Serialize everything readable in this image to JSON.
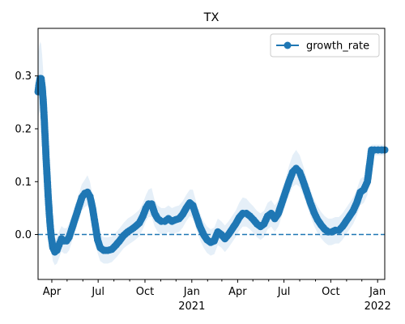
{
  "chart_data": {
    "type": "line",
    "title": "TX",
    "xlabel": "",
    "ylabel": "",
    "x_range": [
      "2020-03-05",
      "2022-01-15"
    ],
    "ylim": [
      -0.085,
      0.39
    ],
    "yticks": [
      0.0,
      0.1,
      0.2,
      0.3
    ],
    "ytick_labels": [
      "0.0",
      "0.1",
      "0.2",
      "0.3"
    ],
    "xticks_major": [
      {
        "date": "2020-04-01",
        "label": "Apr",
        "sublabel": ""
      },
      {
        "date": "2020-07-01",
        "label": "Jul",
        "sublabel": ""
      },
      {
        "date": "2020-10-01",
        "label": "Oct",
        "sublabel": ""
      },
      {
        "date": "2021-01-01",
        "label": "Jan",
        "sublabel": "2021"
      },
      {
        "date": "2021-04-01",
        "label": "Apr",
        "sublabel": ""
      },
      {
        "date": "2021-07-01",
        "label": "Jul",
        "sublabel": ""
      },
      {
        "date": "2021-10-01",
        "label": "Oct",
        "sublabel": ""
      },
      {
        "date": "2022-01-01",
        "label": "Jan",
        "sublabel": "2022"
      }
    ],
    "xticks_minor": [
      "2020-05-01",
      "2020-06-01",
      "2020-08-01",
      "2020-09-01",
      "2020-11-01",
      "2020-12-01",
      "2021-02-01",
      "2021-03-01",
      "2021-05-01",
      "2021-06-01",
      "2021-08-01",
      "2021-09-01",
      "2021-11-01",
      "2021-12-01"
    ],
    "grid": false,
    "legend_position": "top-right",
    "reference_line": {
      "y": 0.0,
      "style": "dashed",
      "color": "#1f77b4"
    },
    "series": [
      {
        "name": "growth_rate",
        "color": "#1f77b4",
        "band_color": "#cfe2f3",
        "marker": "circle",
        "points": [
          {
            "x": "2020-03-05",
            "y": 0.27,
            "lo": 0.22,
            "hi": 0.34
          },
          {
            "x": "2020-03-07",
            "y": 0.285,
            "lo": 0.23,
            "hi": 0.355
          },
          {
            "x": "2020-03-09",
            "y": 0.295,
            "lo": 0.24,
            "hi": 0.365
          },
          {
            "x": "2020-03-11",
            "y": 0.295,
            "lo": 0.24,
            "hi": 0.36
          },
          {
            "x": "2020-03-13",
            "y": 0.28,
            "lo": 0.23,
            "hi": 0.34
          },
          {
            "x": "2020-03-15",
            "y": 0.255,
            "lo": 0.205,
            "hi": 0.31
          },
          {
            "x": "2020-03-17",
            "y": 0.22,
            "lo": 0.17,
            "hi": 0.27
          },
          {
            "x": "2020-03-19",
            "y": 0.18,
            "lo": 0.13,
            "hi": 0.23
          },
          {
            "x": "2020-03-21",
            "y": 0.14,
            "lo": 0.095,
            "hi": 0.185
          },
          {
            "x": "2020-03-23",
            "y": 0.105,
            "lo": 0.065,
            "hi": 0.145
          },
          {
            "x": "2020-03-25",
            "y": 0.07,
            "lo": 0.035,
            "hi": 0.105
          },
          {
            "x": "2020-03-27",
            "y": 0.04,
            "lo": 0.01,
            "hi": 0.07
          },
          {
            "x": "2020-03-29",
            "y": 0.015,
            "lo": -0.012,
            "hi": 0.042
          },
          {
            "x": "2020-03-31",
            "y": -0.005,
            "lo": -0.03,
            "hi": 0.02
          },
          {
            "x": "2020-04-03",
            "y": -0.025,
            "lo": -0.05,
            "hi": 0.0
          },
          {
            "x": "2020-04-07",
            "y": -0.033,
            "lo": -0.058,
            "hi": -0.008
          },
          {
            "x": "2020-04-11",
            "y": -0.03,
            "lo": -0.055,
            "hi": -0.005
          },
          {
            "x": "2020-04-15",
            "y": -0.02,
            "lo": -0.045,
            "hi": 0.005
          },
          {
            "x": "2020-04-20",
            "y": -0.008,
            "lo": -0.032,
            "hi": 0.016
          },
          {
            "x": "2020-04-25",
            "y": -0.012,
            "lo": -0.036,
            "hi": 0.012
          },
          {
            "x": "2020-04-30",
            "y": -0.012,
            "lo": -0.036,
            "hi": 0.012
          },
          {
            "x": "2020-05-05",
            "y": -0.005,
            "lo": -0.03,
            "hi": 0.02
          },
          {
            "x": "2020-05-10",
            "y": 0.01,
            "lo": -0.015,
            "hi": 0.035
          },
          {
            "x": "2020-05-15",
            "y": 0.025,
            "lo": 0.0,
            "hi": 0.05
          },
          {
            "x": "2020-05-20",
            "y": 0.04,
            "lo": 0.015,
            "hi": 0.065
          },
          {
            "x": "2020-05-25",
            "y": 0.055,
            "lo": 0.03,
            "hi": 0.08
          },
          {
            "x": "2020-05-30",
            "y": 0.07,
            "lo": 0.045,
            "hi": 0.095
          },
          {
            "x": "2020-06-05",
            "y": 0.078,
            "lo": 0.052,
            "hi": 0.104
          },
          {
            "x": "2020-06-10",
            "y": 0.08,
            "lo": 0.055,
            "hi": 0.112
          },
          {
            "x": "2020-06-15",
            "y": 0.072,
            "lo": 0.046,
            "hi": 0.1
          },
          {
            "x": "2020-06-20",
            "y": 0.05,
            "lo": 0.025,
            "hi": 0.075
          },
          {
            "x": "2020-06-25",
            "y": 0.02,
            "lo": -0.005,
            "hi": 0.045
          },
          {
            "x": "2020-06-30",
            "y": -0.01,
            "lo": -0.035,
            "hi": 0.015
          },
          {
            "x": "2020-07-05",
            "y": -0.025,
            "lo": -0.05,
            "hi": 0.0
          },
          {
            "x": "2020-07-12",
            "y": -0.03,
            "lo": -0.055,
            "hi": -0.005
          },
          {
            "x": "2020-07-20",
            "y": -0.03,
            "lo": -0.055,
            "hi": -0.005
          },
          {
            "x": "2020-07-28",
            "y": -0.028,
            "lo": -0.052,
            "hi": -0.004
          },
          {
            "x": "2020-08-05",
            "y": -0.02,
            "lo": -0.044,
            "hi": 0.004
          },
          {
            "x": "2020-08-12",
            "y": -0.012,
            "lo": -0.036,
            "hi": 0.012
          },
          {
            "x": "2020-08-20",
            "y": -0.002,
            "lo": -0.026,
            "hi": 0.022
          },
          {
            "x": "2020-08-28",
            "y": 0.005,
            "lo": -0.02,
            "hi": 0.03
          },
          {
            "x": "2020-09-05",
            "y": 0.01,
            "lo": -0.015,
            "hi": 0.035
          },
          {
            "x": "2020-09-12",
            "y": 0.015,
            "lo": -0.01,
            "hi": 0.04
          },
          {
            "x": "2020-09-20",
            "y": 0.022,
            "lo": -0.003,
            "hi": 0.047
          },
          {
            "x": "2020-09-27",
            "y": 0.035,
            "lo": 0.01,
            "hi": 0.06
          },
          {
            "x": "2020-10-03",
            "y": 0.05,
            "lo": 0.025,
            "hi": 0.075
          },
          {
            "x": "2020-10-08",
            "y": 0.058,
            "lo": 0.033,
            "hi": 0.085
          },
          {
            "x": "2020-10-14",
            "y": 0.058,
            "lo": 0.033,
            "hi": 0.088
          },
          {
            "x": "2020-10-20",
            "y": 0.04,
            "lo": 0.015,
            "hi": 0.065
          },
          {
            "x": "2020-10-26",
            "y": 0.03,
            "lo": 0.005,
            "hi": 0.055
          },
          {
            "x": "2020-11-02",
            "y": 0.025,
            "lo": 0.0,
            "hi": 0.05
          },
          {
            "x": "2020-11-09",
            "y": 0.025,
            "lo": 0.0,
            "hi": 0.05
          },
          {
            "x": "2020-11-16",
            "y": 0.03,
            "lo": 0.005,
            "hi": 0.055
          },
          {
            "x": "2020-11-23",
            "y": 0.025,
            "lo": 0.0,
            "hi": 0.05
          },
          {
            "x": "2020-11-30",
            "y": 0.028,
            "lo": 0.003,
            "hi": 0.053
          },
          {
            "x": "2020-12-07",
            "y": 0.03,
            "lo": 0.005,
            "hi": 0.055
          },
          {
            "x": "2020-12-14",
            "y": 0.038,
            "lo": 0.013,
            "hi": 0.063
          },
          {
            "x": "2020-12-21",
            "y": 0.05,
            "lo": 0.025,
            "hi": 0.075
          },
          {
            "x": "2020-12-28",
            "y": 0.06,
            "lo": 0.035,
            "hi": 0.085
          },
          {
            "x": "2021-01-03",
            "y": 0.055,
            "lo": 0.03,
            "hi": 0.085
          },
          {
            "x": "2021-01-10",
            "y": 0.035,
            "lo": 0.01,
            "hi": 0.06
          },
          {
            "x": "2021-01-17",
            "y": 0.015,
            "lo": -0.01,
            "hi": 0.04
          },
          {
            "x": "2021-01-24",
            "y": 0.0,
            "lo": -0.025,
            "hi": 0.025
          },
          {
            "x": "2021-01-31",
            "y": -0.01,
            "lo": -0.035,
            "hi": 0.015
          },
          {
            "x": "2021-02-07",
            "y": -0.015,
            "lo": -0.04,
            "hi": 0.01
          },
          {
            "x": "2021-02-14",
            "y": -0.012,
            "lo": -0.037,
            "hi": 0.013
          },
          {
            "x": "2021-02-21",
            "y": 0.005,
            "lo": -0.02,
            "hi": 0.03
          },
          {
            "x": "2021-02-28",
            "y": 0.0,
            "lo": -0.025,
            "hi": 0.025
          },
          {
            "x": "2021-03-07",
            "y": -0.008,
            "lo": -0.033,
            "hi": 0.017
          },
          {
            "x": "2021-03-14",
            "y": 0.0,
            "lo": -0.025,
            "hi": 0.025
          },
          {
            "x": "2021-03-21",
            "y": 0.01,
            "lo": -0.015,
            "hi": 0.035
          },
          {
            "x": "2021-03-28",
            "y": 0.02,
            "lo": -0.005,
            "hi": 0.045
          },
          {
            "x": "2021-04-04",
            "y": 0.032,
            "lo": 0.007,
            "hi": 0.06
          },
          {
            "x": "2021-04-11",
            "y": 0.04,
            "lo": 0.015,
            "hi": 0.07
          },
          {
            "x": "2021-04-18",
            "y": 0.04,
            "lo": 0.015,
            "hi": 0.068
          },
          {
            "x": "2021-04-25",
            "y": 0.035,
            "lo": 0.01,
            "hi": 0.06
          },
          {
            "x": "2021-05-02",
            "y": 0.028,
            "lo": 0.003,
            "hi": 0.053
          },
          {
            "x": "2021-05-09",
            "y": 0.02,
            "lo": -0.005,
            "hi": 0.045
          },
          {
            "x": "2021-05-16",
            "y": 0.015,
            "lo": -0.01,
            "hi": 0.04
          },
          {
            "x": "2021-05-23",
            "y": 0.02,
            "lo": -0.005,
            "hi": 0.045
          },
          {
            "x": "2021-05-30",
            "y": 0.035,
            "lo": 0.01,
            "hi": 0.06
          },
          {
            "x": "2021-06-06",
            "y": 0.04,
            "lo": 0.015,
            "hi": 0.065
          },
          {
            "x": "2021-06-13",
            "y": 0.03,
            "lo": 0.005,
            "hi": 0.055
          },
          {
            "x": "2021-06-20",
            "y": 0.04,
            "lo": 0.015,
            "hi": 0.065
          },
          {
            "x": "2021-06-27",
            "y": 0.06,
            "lo": 0.035,
            "hi": 0.085
          },
          {
            "x": "2021-07-04",
            "y": 0.08,
            "lo": 0.055,
            "hi": 0.105
          },
          {
            "x": "2021-07-11",
            "y": 0.1,
            "lo": 0.075,
            "hi": 0.13
          },
          {
            "x": "2021-07-18",
            "y": 0.118,
            "lo": 0.09,
            "hi": 0.15
          },
          {
            "x": "2021-07-25",
            "y": 0.125,
            "lo": 0.095,
            "hi": 0.16
          },
          {
            "x": "2021-08-01",
            "y": 0.118,
            "lo": 0.09,
            "hi": 0.15
          },
          {
            "x": "2021-08-08",
            "y": 0.1,
            "lo": 0.075,
            "hi": 0.13
          },
          {
            "x": "2021-08-15",
            "y": 0.08,
            "lo": 0.055,
            "hi": 0.105
          },
          {
            "x": "2021-08-22",
            "y": 0.06,
            "lo": 0.035,
            "hi": 0.085
          },
          {
            "x": "2021-08-29",
            "y": 0.042,
            "lo": 0.017,
            "hi": 0.067
          },
          {
            "x": "2021-09-05",
            "y": 0.028,
            "lo": 0.003,
            "hi": 0.053
          },
          {
            "x": "2021-09-12",
            "y": 0.018,
            "lo": -0.007,
            "hi": 0.043
          },
          {
            "x": "2021-09-19",
            "y": 0.01,
            "lo": -0.015,
            "hi": 0.035
          },
          {
            "x": "2021-09-26",
            "y": 0.005,
            "lo": -0.02,
            "hi": 0.03
          },
          {
            "x": "2021-10-03",
            "y": 0.005,
            "lo": -0.02,
            "hi": 0.03
          },
          {
            "x": "2021-10-10",
            "y": 0.008,
            "lo": -0.017,
            "hi": 0.033
          },
          {
            "x": "2021-10-17",
            "y": 0.008,
            "lo": -0.017,
            "hi": 0.033
          },
          {
            "x": "2021-10-24",
            "y": 0.015,
            "lo": -0.01,
            "hi": 0.04
          },
          {
            "x": "2021-10-31",
            "y": 0.025,
            "lo": 0.0,
            "hi": 0.05
          },
          {
            "x": "2021-11-07",
            "y": 0.035,
            "lo": 0.01,
            "hi": 0.06
          },
          {
            "x": "2021-11-14",
            "y": 0.045,
            "lo": 0.02,
            "hi": 0.07
          },
          {
            "x": "2021-11-21",
            "y": 0.06,
            "lo": 0.035,
            "hi": 0.085
          },
          {
            "x": "2021-11-28",
            "y": 0.08,
            "lo": 0.055,
            "hi": 0.105
          },
          {
            "x": "2021-12-05",
            "y": 0.085,
            "lo": 0.06,
            "hi": 0.11
          },
          {
            "x": "2021-12-12",
            "y": 0.1,
            "lo": 0.075,
            "hi": 0.125
          },
          {
            "x": "2021-12-16",
            "y": 0.13,
            "lo": 0.11,
            "hi": 0.15
          },
          {
            "x": "2021-12-20",
            "y": 0.16,
            "lo": 0.15,
            "hi": 0.17
          },
          {
            "x": "2021-12-26",
            "y": 0.16,
            "lo": 0.15,
            "hi": 0.17
          },
          {
            "x": "2022-01-02",
            "y": 0.16,
            "lo": 0.15,
            "hi": 0.17
          },
          {
            "x": "2022-01-09",
            "y": 0.16,
            "lo": 0.15,
            "hi": 0.17
          },
          {
            "x": "2022-01-15",
            "y": 0.16,
            "lo": 0.15,
            "hi": 0.17
          }
        ]
      }
    ]
  }
}
